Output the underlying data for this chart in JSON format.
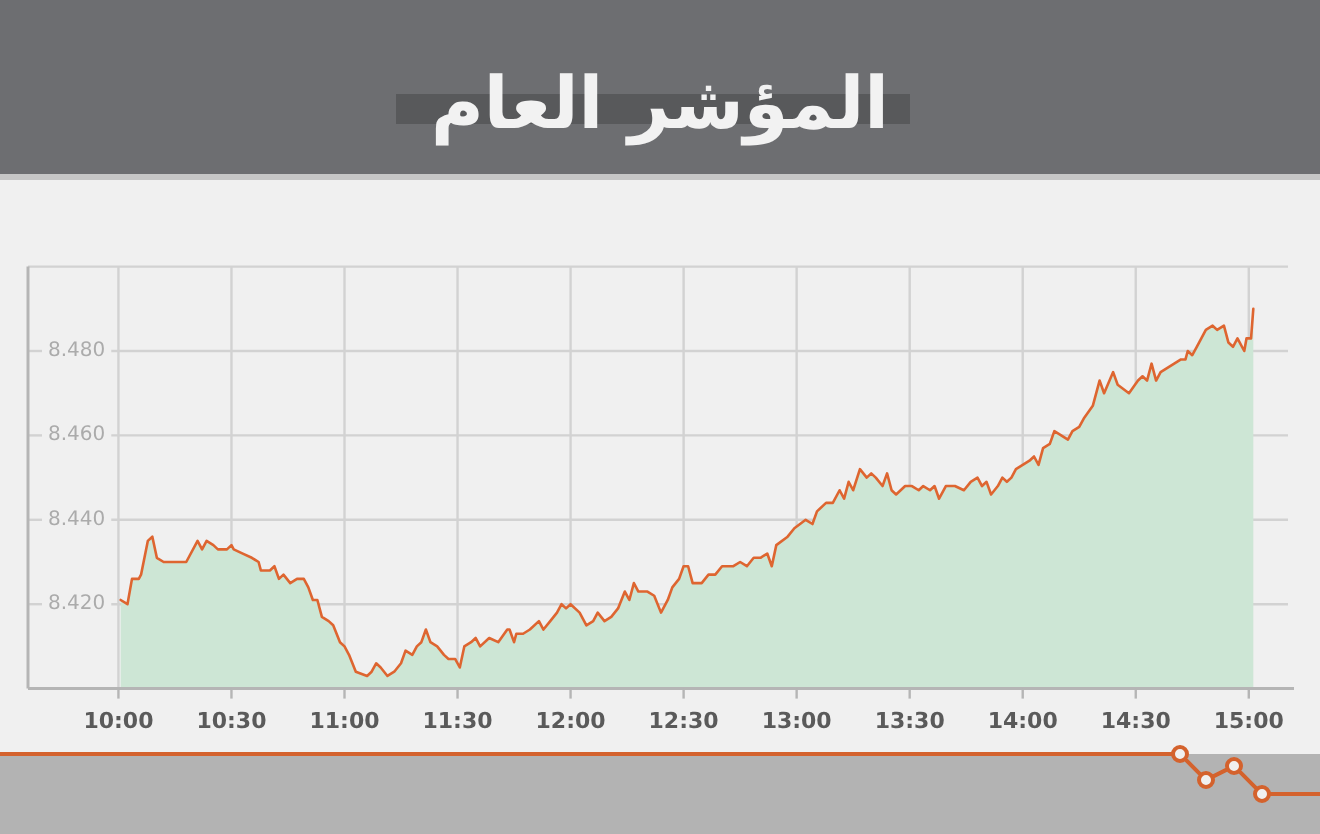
{
  "chart_data": {
    "type": "area",
    "title": "المؤشر العام",
    "x": [
      10.01,
      10.04,
      10.06,
      10.09,
      10.1,
      10.13,
      10.15,
      10.17,
      10.2,
      10.22,
      10.3,
      10.35,
      10.37,
      10.39,
      10.42,
      10.44,
      10.48,
      10.5,
      10.51,
      10.55,
      10.59,
      10.62,
      10.63,
      10.67,
      10.69,
      10.71,
      10.73,
      10.76,
      10.79,
      10.82,
      10.84,
      10.86,
      10.88,
      10.9,
      10.93,
      10.95,
      10.98,
      11.0,
      11.02,
      11.05,
      11.1,
      11.12,
      11.14,
      11.16,
      11.19,
      11.22,
      11.25,
      11.27,
      11.3,
      11.32,
      11.34,
      11.36,
      11.38,
      11.41,
      11.44,
      11.46,
      11.49,
      11.51,
      11.53,
      11.56,
      11.58,
      11.6,
      11.64,
      11.68,
      11.72,
      11.73,
      11.75,
      11.76,
      11.79,
      11.82,
      11.86,
      11.88,
      11.91,
      11.94,
      11.96,
      11.98,
      12.0,
      12.04,
      12.07,
      12.1,
      12.12,
      12.15,
      12.18,
      12.21,
      12.24,
      12.26,
      12.28,
      12.3,
      12.34,
      12.37,
      12.4,
      12.43,
      12.45,
      12.48,
      12.5,
      12.52,
      12.54,
      12.58,
      12.61,
      12.64,
      12.67,
      12.72,
      12.75,
      12.78,
      12.81,
      12.84,
      12.87,
      12.89,
      12.91,
      12.96,
      12.99,
      13.04,
      13.07,
      13.09,
      13.13,
      13.16,
      13.19,
      13.21,
      13.23,
      13.25,
      13.28,
      13.31,
      13.33,
      13.35,
      13.38,
      13.4,
      13.42,
      13.44,
      13.48,
      13.51,
      13.54,
      13.56,
      13.59,
      13.61,
      13.63,
      13.66,
      13.7,
      13.74,
      13.77,
      13.8,
      13.82,
      13.84,
      13.86,
      13.89,
      13.91,
      13.93,
      13.95,
      13.97,
      14.0,
      14.03,
      14.05,
      14.07,
      14.09,
      14.12,
      14.14,
      14.17,
      14.2,
      14.22,
      14.25,
      14.27,
      14.31,
      14.34,
      14.36,
      14.4,
      14.42,
      14.47,
      14.51,
      14.53,
      14.55,
      14.57,
      14.59,
      14.61,
      14.64,
      14.67,
      14.7,
      14.72,
      14.73,
      14.75,
      14.77,
      14.79,
      14.81,
      14.84,
      14.86,
      14.89,
      14.91,
      14.93,
      14.95,
      14.98,
      14.99,
      15.01,
      15.02
    ],
    "series": [
      {
        "color": "#cde6d5",
        "values": [
          8421,
          8420,
          8426,
          8426,
          8427,
          8435,
          8436,
          8431,
          8430,
          8430,
          8430,
          8435,
          8433,
          8435,
          8434,
          8433,
          8433,
          8434,
          8433,
          8432,
          8431,
          8430,
          8428,
          8428,
          8429,
          8426,
          8427,
          8425,
          8426,
          8426,
          8424,
          8421,
          8421,
          8417,
          8416,
          8415,
          8411,
          8410,
          8408,
          8404,
          8403,
          8404,
          8406,
          8405,
          8403,
          8404,
          8406,
          8409,
          8408,
          8410,
          8411,
          8414,
          8411,
          8410,
          8408,
          8407,
          8407,
          8405,
          8410,
          8411,
          8412,
          8410,
          8412,
          8411,
          8414,
          8414,
          8411,
          8413,
          8413,
          8414,
          8416,
          8414,
          8416,
          8418,
          8420,
          8419,
          8420,
          8418,
          8415,
          8416,
          8418,
          8416,
          8417,
          8419,
          8423,
          8421,
          8425,
          8423,
          8423,
          8422,
          8418,
          8421,
          8424,
          8426,
          8429,
          8429,
          8425,
          8425,
          8427,
          8427,
          8429,
          8429,
          8430,
          8429,
          8431,
          8431,
          8432,
          8429,
          8434,
          8436,
          8438,
          8440,
          8439,
          8442,
          8444,
          8444,
          8447,
          8445,
          8449,
          8447,
          8452,
          8450,
          8451,
          8450,
          8448,
          8451,
          8447,
          8446,
          8448,
          8448,
          8447,
          8448,
          8447,
          8448,
          8445,
          8448,
          8448,
          8447,
          8449,
          8450,
          8448,
          8449,
          8446,
          8448,
          8450,
          8449,
          8450,
          8452,
          8453,
          8454,
          8455,
          8453,
          8457,
          8458,
          8461,
          8460,
          8459,
          8461,
          8462,
          8464,
          8467,
          8473,
          8470,
          8475,
          8472,
          8470,
          8473,
          8474,
          8473,
          8477,
          8473,
          8475,
          8476,
          8477,
          8478,
          8478,
          8480,
          8479,
          8481,
          8483,
          8485,
          8486,
          8485,
          8486,
          8482,
          8481,
          8483,
          8480,
          8483,
          8483,
          8490
        ]
      }
    ],
    "xlim": [
      9.6,
      15.2
    ],
    "xticks": [
      {
        "value": 10,
        "label": "10:00"
      },
      {
        "value": 10.5,
        "label": "10:30"
      },
      {
        "value": 11,
        "label": "11:00"
      },
      {
        "value": 11.5,
        "label": "11:30"
      },
      {
        "value": 12,
        "label": "12:00"
      },
      {
        "value": 12.5,
        "label": "12:30"
      },
      {
        "value": 13,
        "label": "13:00"
      },
      {
        "value": 13.5,
        "label": "13:30"
      },
      {
        "value": 14,
        "label": "14:00"
      },
      {
        "value": 14.5,
        "label": "14:30"
      },
      {
        "value": 15,
        "label": "15:00"
      }
    ],
    "ylim": [
      8400,
      8500
    ],
    "yticks": [
      {
        "value": 8420,
        "label": "8.420"
      },
      {
        "value": 8440,
        "label": "8.440"
      },
      {
        "value": 8460,
        "label": "8.460"
      },
      {
        "value": 8480,
        "label": "8.480"
      },
      {
        "value": 8500,
        "label": null
      }
    ],
    "grid": true
  }
}
